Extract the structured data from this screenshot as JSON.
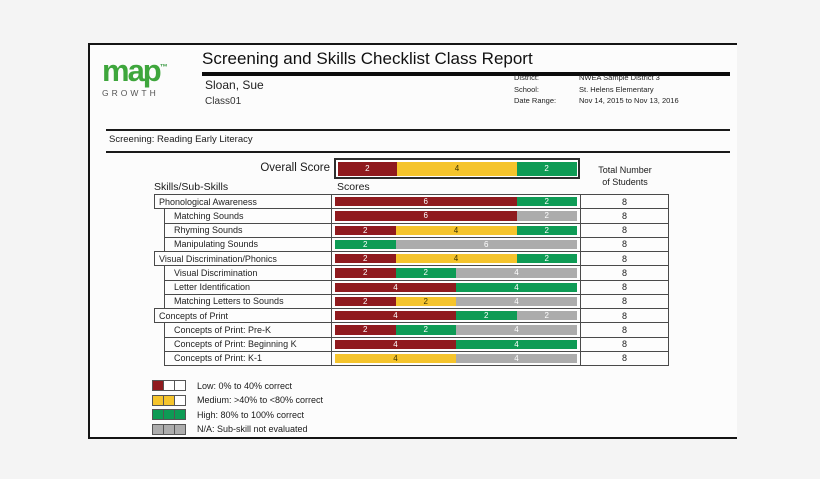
{
  "colors": {
    "low": "#8F1A1E",
    "medium": "#F5C42C",
    "high": "#0E9B55",
    "na": "#ACACAC",
    "brand": "#3EA63C"
  },
  "page": {
    "logo": {
      "brand": "map",
      "tm": "™",
      "sub": "GROWTH"
    },
    "title": "Screening and Skills Checklist Class Report",
    "teacher": "Sloan, Sue",
    "class_name": "Class01",
    "meta": [
      {
        "label": "District:",
        "value": "NWEA Sample District 3"
      },
      {
        "label": "School:",
        "value": "St. Helens Elementary"
      },
      {
        "label": "Date Range:",
        "value": "Nov 14, 2015 to Nov 13, 2016"
      }
    ],
    "screening_label": "Screening: Reading Early Literacy"
  },
  "overall": {
    "label": "Overall Score",
    "segments": [
      {
        "level": "low",
        "count": 2
      },
      {
        "level": "medium",
        "count": 4
      },
      {
        "level": "high",
        "count": 2
      }
    ],
    "total_header_line1": "Total Number",
    "total_header_line2": "of Students"
  },
  "table": {
    "col_skills": "Skills/Sub-Skills",
    "col_scores": "Scores",
    "rows": [
      {
        "skill": "Phonological Awareness",
        "indent": false,
        "total": 8,
        "segments": [
          {
            "level": "low",
            "count": 6
          },
          {
            "level": "high",
            "count": 2
          }
        ]
      },
      {
        "skill": "Matching Sounds",
        "indent": true,
        "total": 8,
        "segments": [
          {
            "level": "low",
            "count": 6
          },
          {
            "level": "na",
            "count": 2
          }
        ]
      },
      {
        "skill": "Rhyming Sounds",
        "indent": true,
        "total": 8,
        "segments": [
          {
            "level": "low",
            "count": 2
          },
          {
            "level": "medium",
            "count": 4
          },
          {
            "level": "high",
            "count": 2
          }
        ]
      },
      {
        "skill": "Manipulating Sounds",
        "indent": true,
        "total": 8,
        "segments": [
          {
            "level": "high",
            "count": 2
          },
          {
            "level": "na",
            "count": 6
          }
        ]
      },
      {
        "skill": "Visual Discrimination/Phonics",
        "indent": false,
        "total": 8,
        "segments": [
          {
            "level": "low",
            "count": 2
          },
          {
            "level": "medium",
            "count": 4
          },
          {
            "level": "high",
            "count": 2
          }
        ]
      },
      {
        "skill": "Visual Discrimination",
        "indent": true,
        "total": 8,
        "segments": [
          {
            "level": "low",
            "count": 2
          },
          {
            "level": "high",
            "count": 2
          },
          {
            "level": "na",
            "count": 4
          }
        ]
      },
      {
        "skill": "Letter Identification",
        "indent": true,
        "total": 8,
        "segments": [
          {
            "level": "low",
            "count": 4
          },
          {
            "level": "high",
            "count": 4
          }
        ]
      },
      {
        "skill": "Matching Letters to Sounds",
        "indent": true,
        "total": 8,
        "segments": [
          {
            "level": "low",
            "count": 2
          },
          {
            "level": "medium",
            "count": 2
          },
          {
            "level": "na",
            "count": 4
          }
        ]
      },
      {
        "skill": "Concepts of Print",
        "indent": false,
        "total": 8,
        "segments": [
          {
            "level": "low",
            "count": 4
          },
          {
            "level": "high",
            "count": 2
          },
          {
            "level": "na",
            "count": 2
          }
        ]
      },
      {
        "skill": "Concepts of Print: Pre-K",
        "indent": true,
        "total": 8,
        "segments": [
          {
            "level": "low",
            "count": 2
          },
          {
            "level": "high",
            "count": 2
          },
          {
            "level": "na",
            "count": 4
          }
        ]
      },
      {
        "skill": "Concepts of Print: Beginning K",
        "indent": true,
        "total": 8,
        "segments": [
          {
            "level": "low",
            "count": 4
          },
          {
            "level": "high",
            "count": 4
          }
        ]
      },
      {
        "skill": "Concepts of Print: K-1",
        "indent": true,
        "total": 8,
        "segments": [
          {
            "level": "medium",
            "count": 4
          },
          {
            "level": "na",
            "count": 4
          }
        ]
      }
    ]
  },
  "legend": {
    "items": [
      {
        "label": "Low: 0% to 40% correct",
        "cells": [
          "low",
          "empty",
          "empty"
        ]
      },
      {
        "label": "Medium: >40% to <80% correct",
        "cells": [
          "medium",
          "medium",
          "empty"
        ]
      },
      {
        "label": "High: 80% to 100% correct",
        "cells": [
          "high",
          "high",
          "high"
        ]
      },
      {
        "label": "N/A: Sub-skill not evaluated",
        "cells": [
          "na",
          "na",
          "na"
        ]
      }
    ]
  }
}
